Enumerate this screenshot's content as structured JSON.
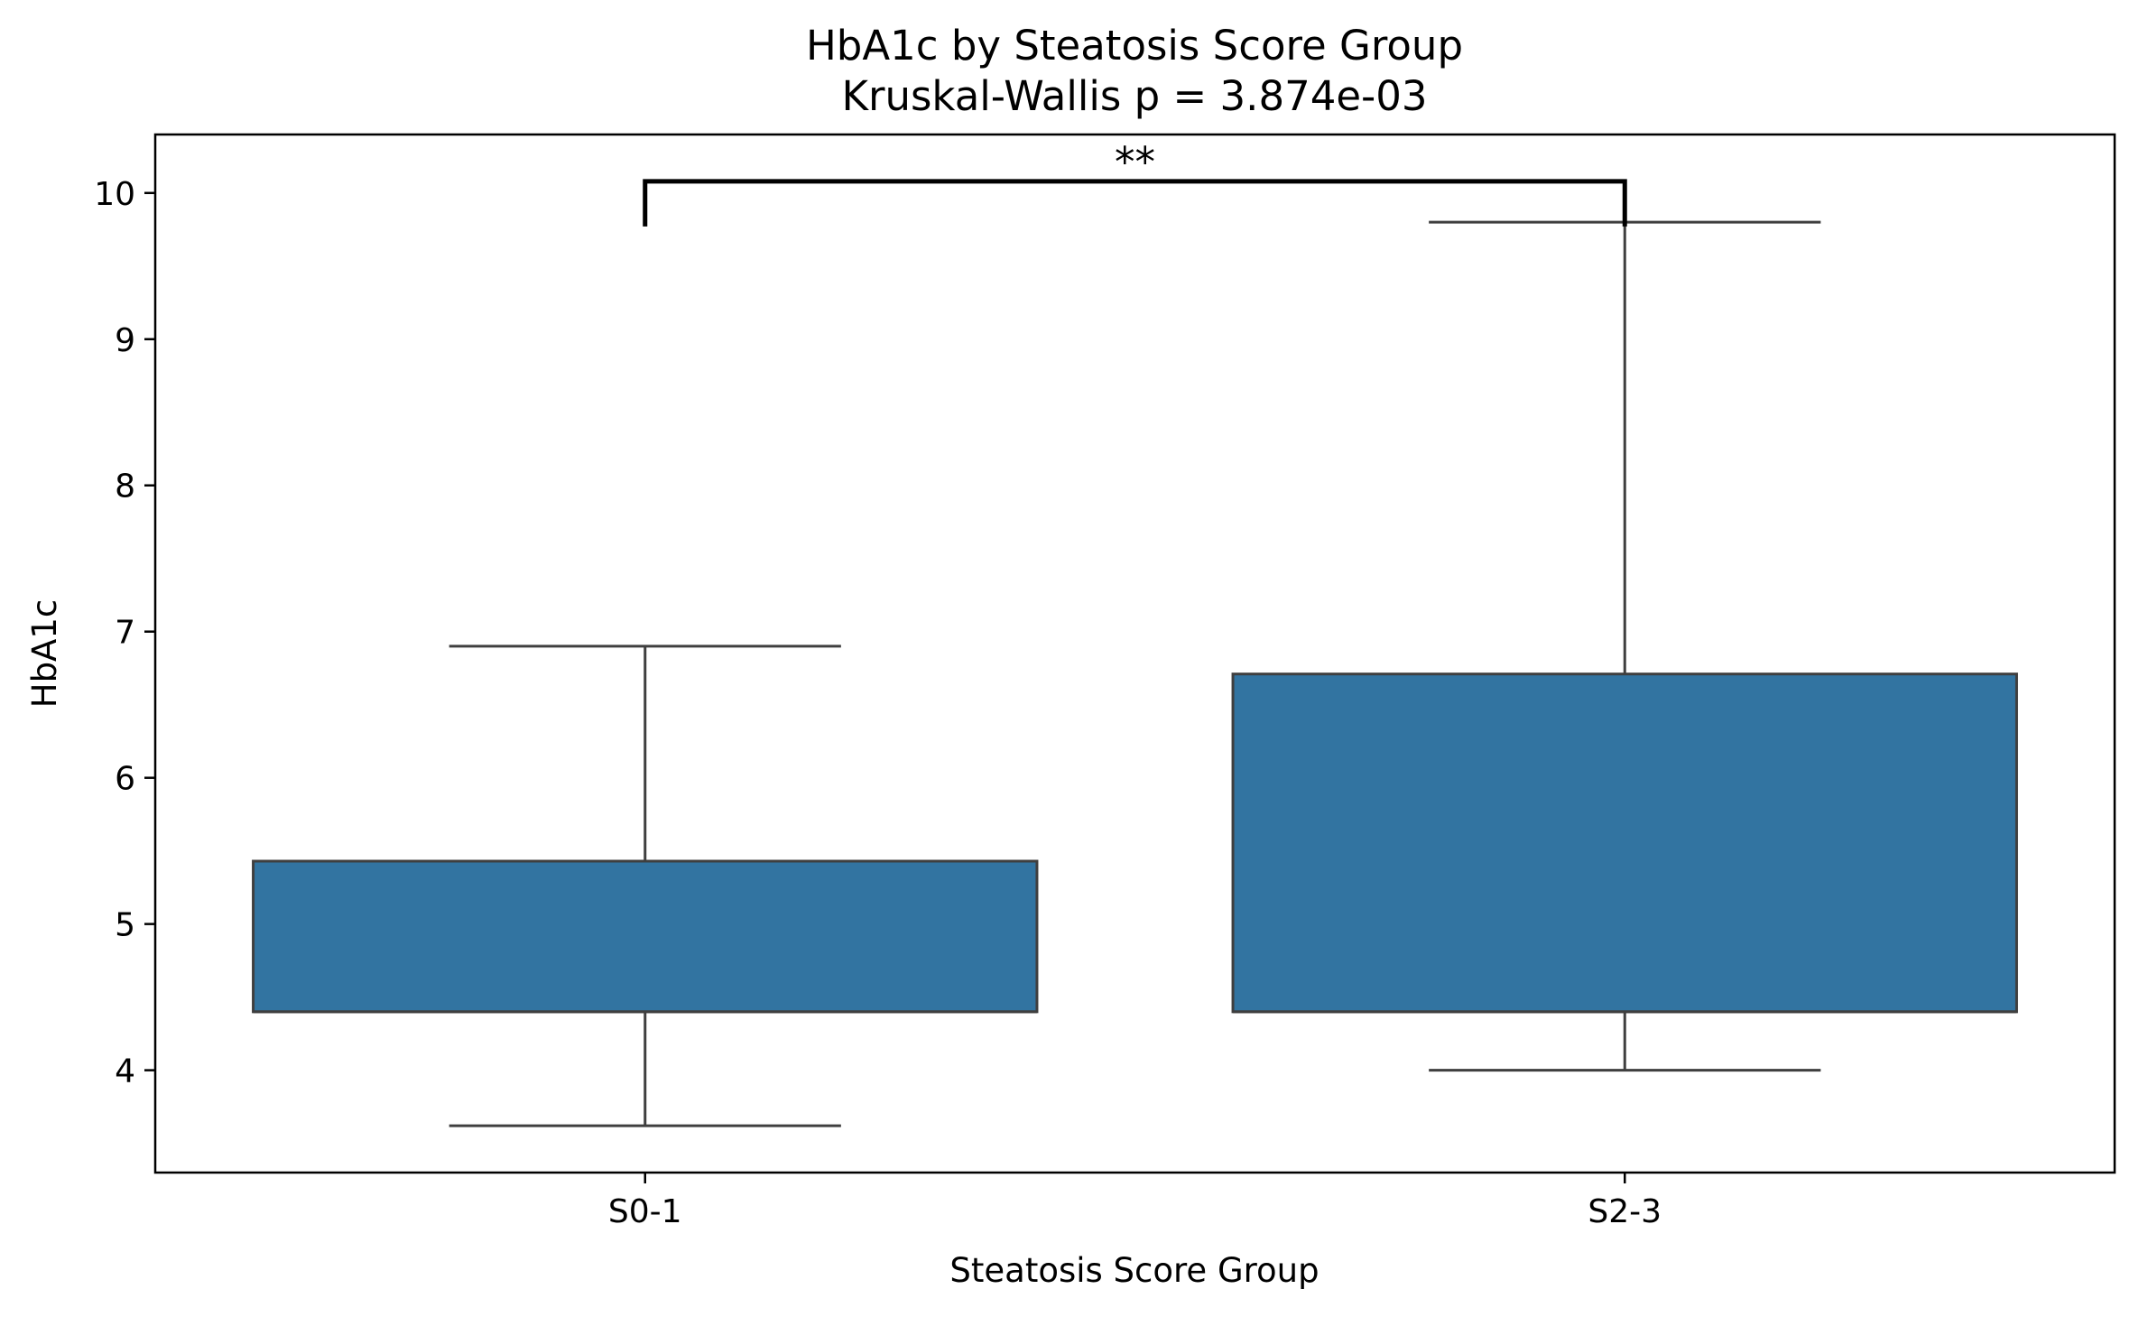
{
  "chart_data": {
    "type": "box",
    "title": "HbA1c by Steatosis Score Group",
    "subtitle": "Kruskal-Wallis p = 3.874e-03",
    "xlabel": "Steatosis Score Group",
    "ylabel": "HbA1c",
    "ylim": [
      3.3,
      10.4
    ],
    "yticks": [
      "4",
      "5",
      "6",
      "7",
      "8",
      "9",
      "10"
    ],
    "categories": [
      "S0-1",
      "S2-3"
    ],
    "box_color": "#3274a1",
    "edge_color": "#3f3f3f",
    "boxes": [
      {
        "category": "S0-1",
        "whisker_low": 3.62,
        "q1": 4.4,
        "median": 4.4,
        "q3": 5.43,
        "whisker_high": 6.9
      },
      {
        "category": "S2-3",
        "whisker_low": 4.0,
        "q1": 4.4,
        "median": 4.4,
        "q3": 6.71,
        "whisker_high": 9.8
      }
    ],
    "significance": {
      "from": "S0-1",
      "to": "S2-3",
      "y": 10.08,
      "label": "**"
    },
    "grid": false,
    "legend": "none"
  }
}
